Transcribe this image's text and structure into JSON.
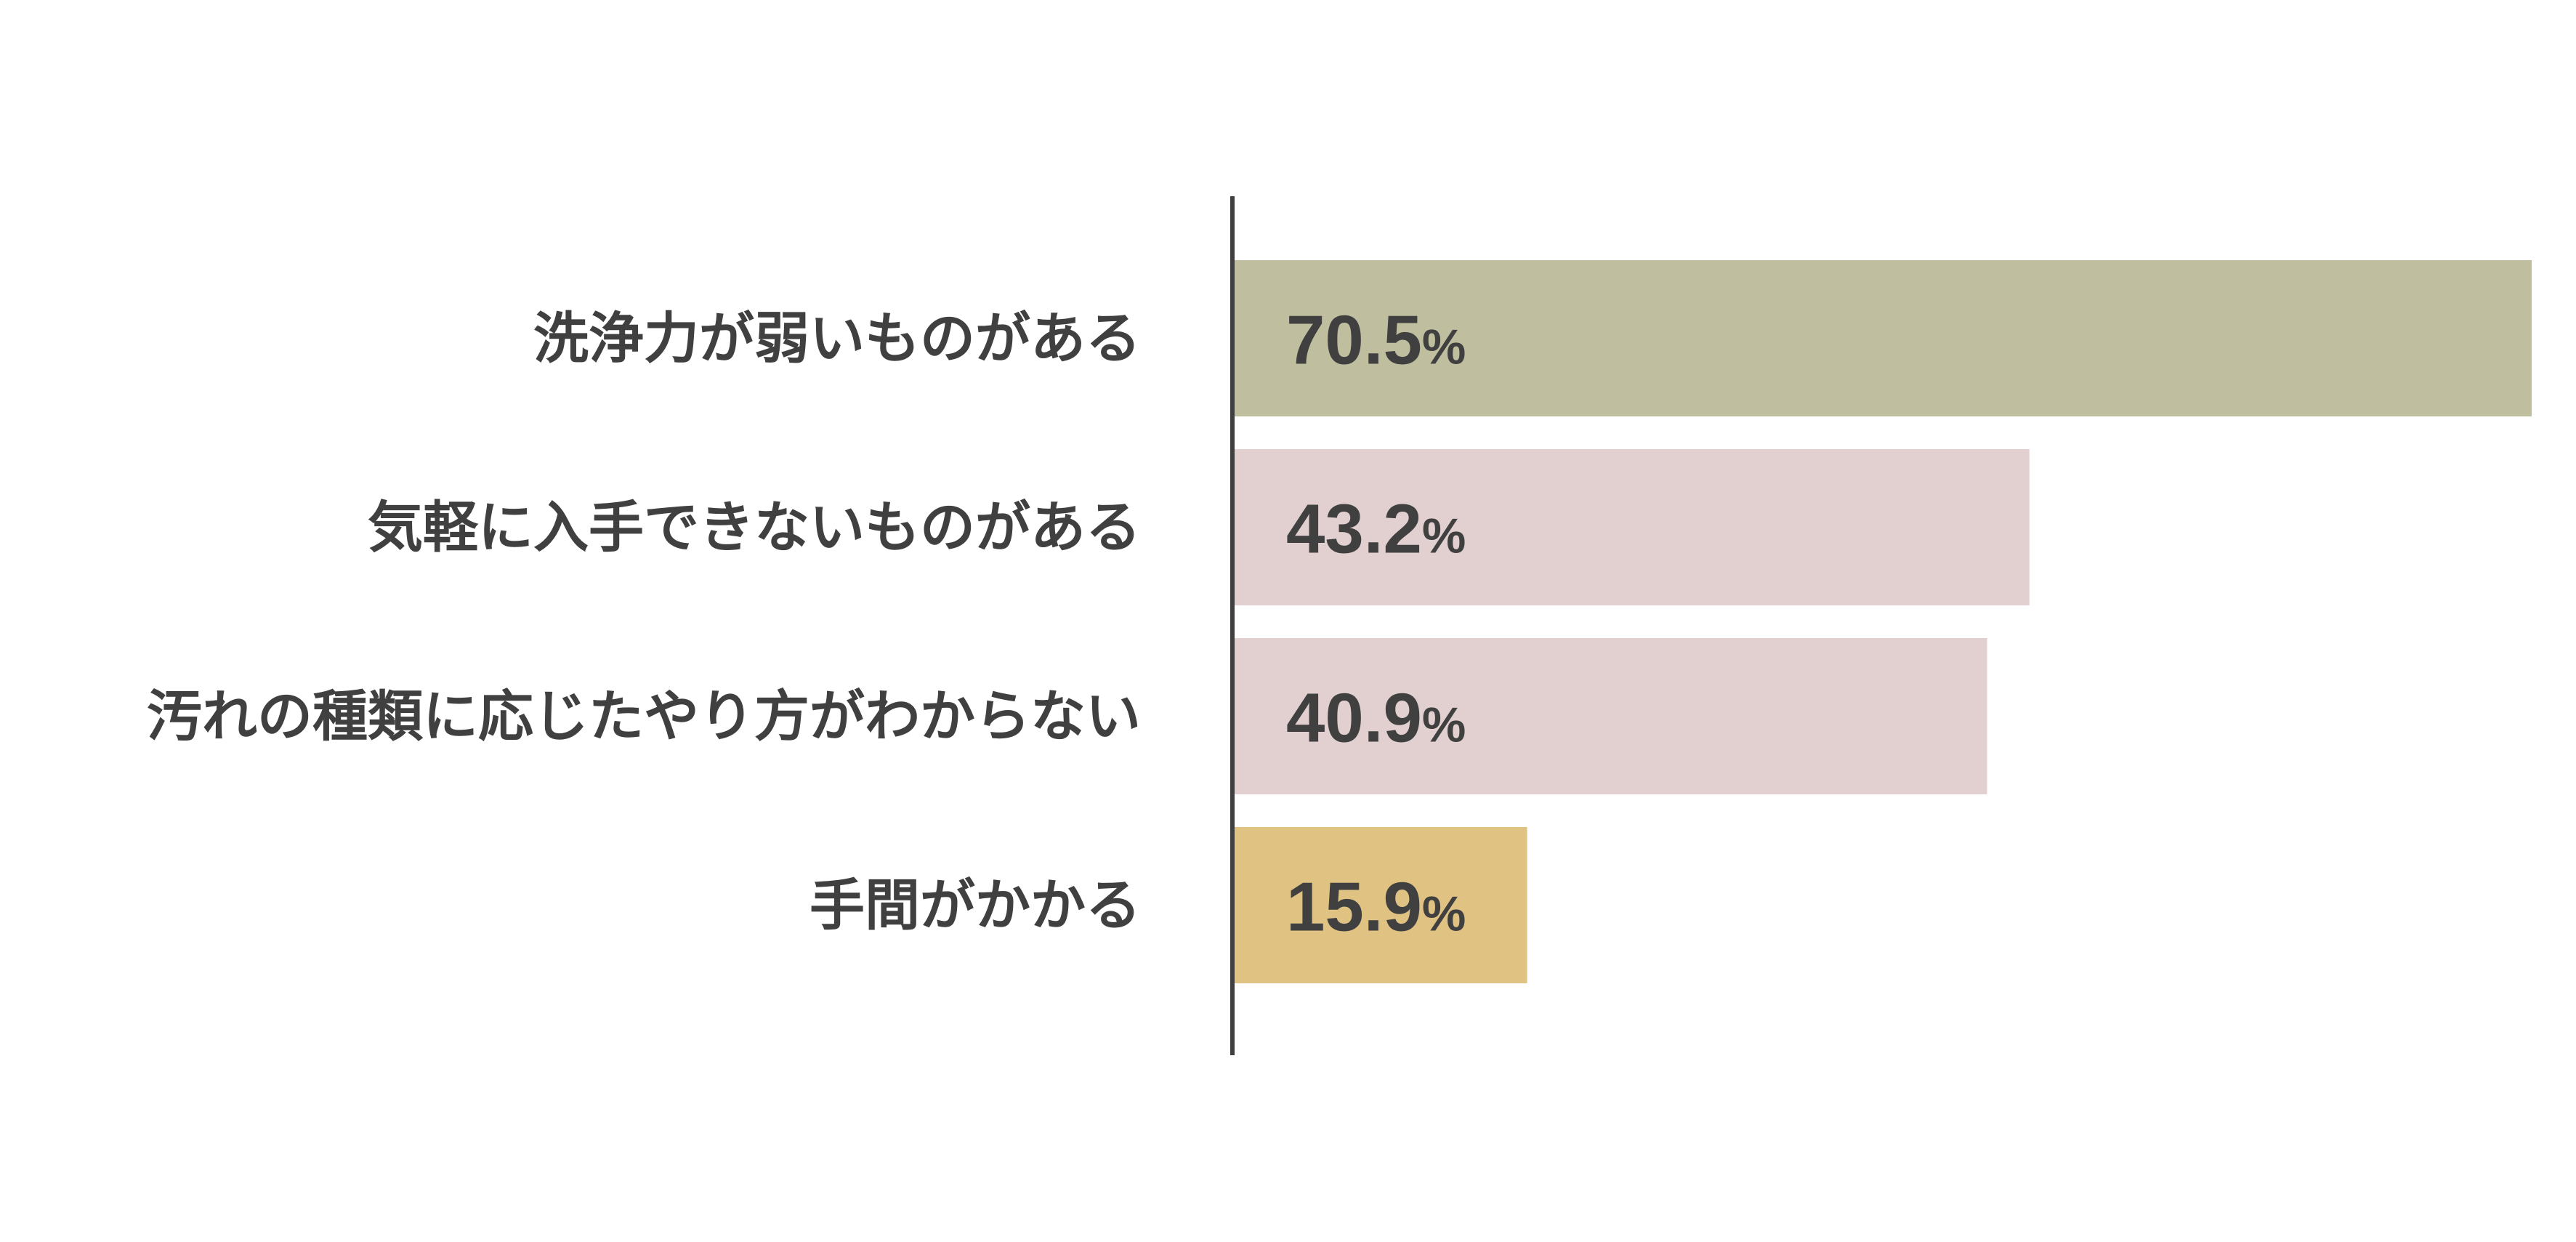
{
  "chart_data": {
    "type": "bar",
    "orientation": "horizontal",
    "categories": [
      "洗浄力が弱いものがある",
      "気軽に入手できないものがある",
      "汚れの種類に応じたやり方がわからない",
      "手間がかかる"
    ],
    "values": [
      70.5,
      43.2,
      40.9,
      15.9
    ],
    "value_labels": [
      "70.5",
      "43.2",
      "40.9",
      "15.9"
    ],
    "unit": "%",
    "xlim": [
      0,
      70.5
    ],
    "bar_colors": [
      "#bfbf9f",
      "#e2d0d0",
      "#e2d0d0",
      "#e0c283"
    ],
    "axis_color": "#404040",
    "grid": false,
    "legend": "none"
  }
}
